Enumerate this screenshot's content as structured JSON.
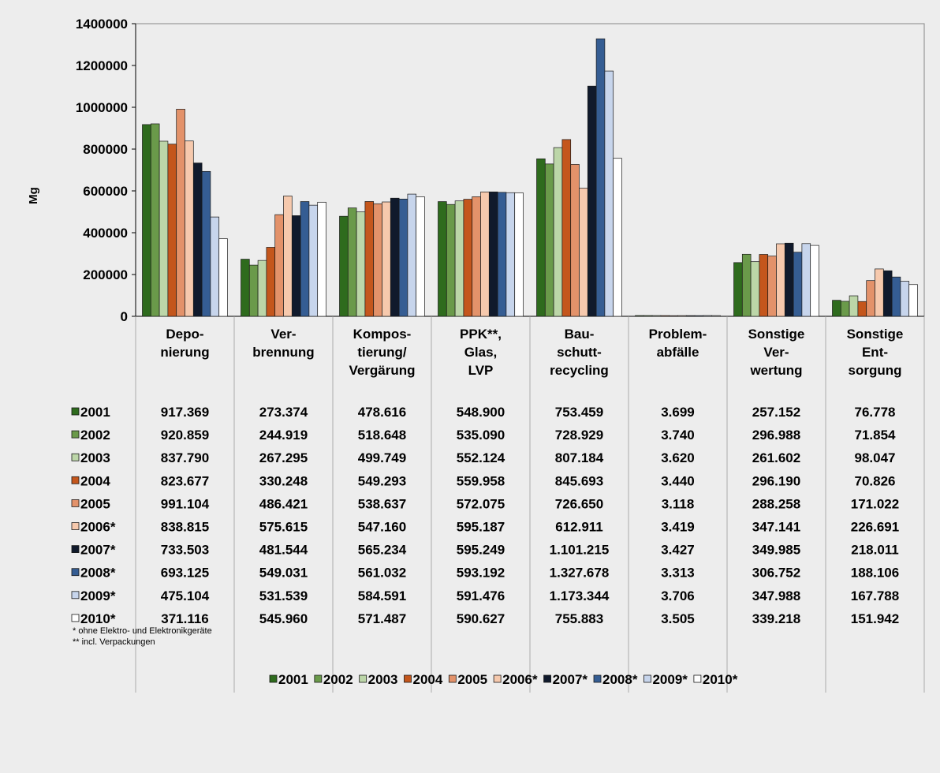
{
  "chart_data": {
    "type": "bar",
    "ylabel": "Mg",
    "ylim": [
      0,
      1400000
    ],
    "yticks": [
      "0",
      "200000",
      "400000",
      "600000",
      "800000",
      "1000000",
      "1200000",
      "1400000"
    ],
    "grid": true,
    "legend_position": "bottom",
    "categories": [
      [
        "Depo-",
        "nierung"
      ],
      [
        "Ver-",
        "brennung"
      ],
      [
        "Kompos-",
        "tierung/",
        "Vergärung"
      ],
      [
        "PPK**,",
        "Glas,",
        "LVP"
      ],
      [
        "Bau-",
        "schutt-",
        "recycling"
      ],
      [
        "Problem-",
        "abfälle"
      ],
      [
        "Sonstige",
        "Ver-",
        "wertung"
      ],
      [
        "Sonstige",
        "Ent-",
        "sorgung"
      ]
    ],
    "series": [
      {
        "name": "2001",
        "color": "#2e6b1d",
        "values": [
          917369,
          273374,
          478616,
          548900,
          753459,
          3699,
          257152,
          76778
        ],
        "labels": [
          "917.369",
          "273.374",
          "478.616",
          "548.900",
          "753.459",
          "3.699",
          "257.152",
          "76.778"
        ]
      },
      {
        "name": "2002",
        "color": "#6a9a4a",
        "values": [
          920859,
          244919,
          518648,
          535090,
          728929,
          3740,
          296988,
          71854
        ],
        "labels": [
          "920.859",
          "244.919",
          "518.648",
          "535.090",
          "728.929",
          "3.740",
          "296.988",
          "71.854"
        ]
      },
      {
        "name": "2003",
        "color": "#bcd6a8",
        "values": [
          837790,
          267295,
          499749,
          552124,
          807184,
          3620,
          261602,
          98047
        ],
        "labels": [
          "837.790",
          "267.295",
          "499.749",
          "552.124",
          "807.184",
          "3.620",
          "261.602",
          "98.047"
        ]
      },
      {
        "name": "2004",
        "color": "#c4561c",
        "values": [
          823677,
          330248,
          549293,
          559958,
          845693,
          3440,
          296190,
          70826
        ],
        "labels": [
          "823.677",
          "330.248",
          "549.293",
          "559.958",
          "845.693",
          "3.440",
          "296.190",
          "70.826"
        ]
      },
      {
        "name": "2005",
        "color": "#e3926a",
        "values": [
          991104,
          486421,
          538637,
          572075,
          726650,
          3118,
          288258,
          171022
        ],
        "labels": [
          "991.104",
          "486.421",
          "538.637",
          "572.075",
          "726.650",
          "3.118",
          "288.258",
          "171.022"
        ]
      },
      {
        "name": "2006*",
        "color": "#f6c9ad",
        "values": [
          838815,
          575615,
          547160,
          595187,
          612911,
          3419,
          347141,
          226691
        ],
        "labels": [
          "838.815",
          "575.615",
          "547.160",
          "595.187",
          "612.911",
          "3.419",
          "347.141",
          "226.691"
        ]
      },
      {
        "name": "2007*",
        "color": "#101a2c",
        "values": [
          733503,
          481544,
          565234,
          595249,
          1101215,
          3427,
          349985,
          218011
        ],
        "labels": [
          "733.503",
          "481.544",
          "565.234",
          "595.249",
          "1.101.215",
          "3.427",
          "349.985",
          "218.011"
        ]
      },
      {
        "name": "2008*",
        "color": "#355d93",
        "values": [
          693125,
          549031,
          561032,
          593192,
          1327678,
          3313,
          306752,
          188106
        ],
        "labels": [
          "693.125",
          "549.031",
          "561.032",
          "593.192",
          "1.327.678",
          "3.313",
          "306.752",
          "188.106"
        ]
      },
      {
        "name": "2009*",
        "color": "#c7d5ec",
        "values": [
          475104,
          531539,
          584591,
          591476,
          1173344,
          3706,
          347988,
          167788
        ],
        "labels": [
          "475.104",
          "531.539",
          "584.591",
          "591.476",
          "1.173.344",
          "3.706",
          "347.988",
          "167.788"
        ]
      },
      {
        "name": "2010*",
        "color": "#ffffff",
        "values": [
          371116,
          545960,
          571487,
          590627,
          755883,
          3505,
          339218,
          151942
        ],
        "labels": [
          "371.116",
          "545.960",
          "571.487",
          "590.627",
          "755.883",
          "3.505",
          "339.218",
          "151.942"
        ]
      }
    ]
  },
  "footnotes": {
    "note1": "*  ohne Elektro- und Elektronikgeräte",
    "note2": "** incl. Verpackungen"
  }
}
